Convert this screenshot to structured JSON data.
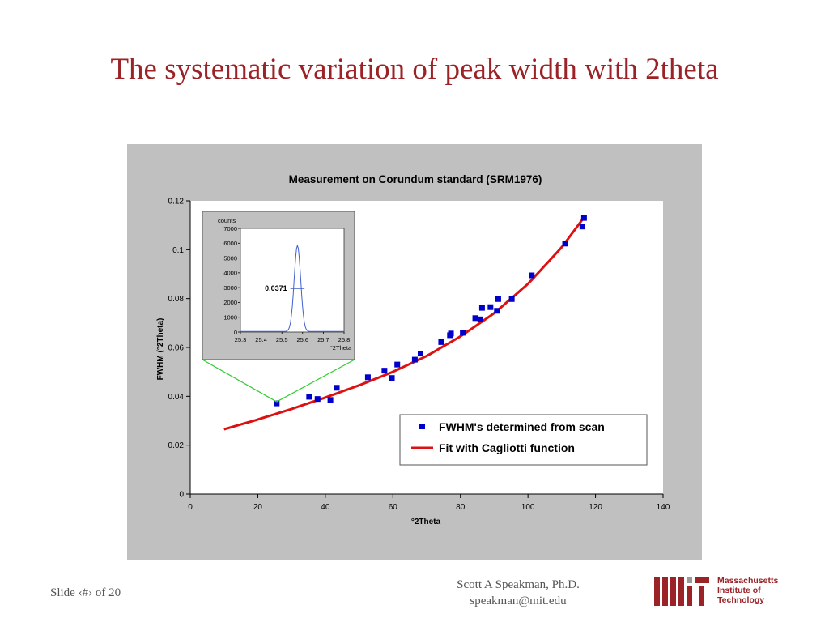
{
  "slide": {
    "title": "The systematic variation of peak width with 2theta",
    "footer_left": "Slide ‹#› of 20",
    "author": "Scott A Speakman, Ph.D.",
    "email": "speakman@mit.edu",
    "logo_lines": [
      "Massachusetts",
      "Institute of",
      "Technology"
    ]
  },
  "colors": {
    "title": "#9b2226",
    "points": "#0000cc",
    "fit": "#dd1111",
    "inset_curve": "#4060d0",
    "callout": "#33cc33"
  },
  "chart_data": [
    {
      "type": "scatter",
      "title": "Measurement on Corundum standard (SRM1976)",
      "xlabel": "°2Theta",
      "ylabel": "FWHM (°2Theta)",
      "xlim": [
        0,
        140
      ],
      "ylim": [
        0,
        0.12
      ],
      "xticks": [
        "0",
        "20",
        "40",
        "60",
        "80",
        "100",
        "120",
        "140"
      ],
      "yticks": [
        "0",
        "0.02",
        "0.04",
        "0.06",
        "0.08",
        "0.1",
        "0.12"
      ],
      "legend_position": "bottom-right",
      "series": [
        {
          "name": "FWHM's determined from scan",
          "marker": "square",
          "x": [
            25.6,
            35.2,
            37.7,
            41.5,
            43.4,
            52.6,
            57.5,
            59.7,
            61.3,
            66.5,
            68.2,
            74.3,
            76.9,
            77.2,
            80.7,
            84.4,
            85.9,
            86.4,
            88.9,
            90.8,
            91.2,
            95.2,
            101.1,
            111.0,
            116.1,
            116.6
          ],
          "y": [
            0.0371,
            0.0398,
            0.0389,
            0.0385,
            0.0435,
            0.0478,
            0.0505,
            0.0475,
            0.053,
            0.055,
            0.0575,
            0.0622,
            0.065,
            0.0657,
            0.066,
            0.072,
            0.0715,
            0.0762,
            0.0765,
            0.075,
            0.0798,
            0.0798,
            0.0895,
            0.1025,
            0.1095,
            0.113
          ]
        },
        {
          "name": "Fit with Cagliotti function",
          "type": "line",
          "x": [
            10,
            20,
            30,
            40,
            50,
            60,
            70,
            80,
            90,
            100,
            110,
            117
          ],
          "y": [
            0.0265,
            0.0305,
            0.0348,
            0.0395,
            0.0445,
            0.05,
            0.0565,
            0.0645,
            0.074,
            0.086,
            0.101,
            0.114
          ]
        }
      ]
    },
    {
      "type": "line",
      "title": "",
      "ylabel": "counts",
      "xlabel": "°2Theta",
      "xlim": [
        25.3,
        25.8
      ],
      "ylim": [
        0,
        7000
      ],
      "xticks": [
        "25.3",
        "25.4",
        "25.5",
        "25.6",
        "25.7",
        "25.8"
      ],
      "yticks": [
        "0",
        "1000",
        "2000",
        "3000",
        "4000",
        "5000",
        "6000",
        "7000"
      ],
      "annotation": "0.0371",
      "peak": {
        "center": 25.575,
        "height": 5800,
        "fwhm": 0.0371
      }
    }
  ]
}
